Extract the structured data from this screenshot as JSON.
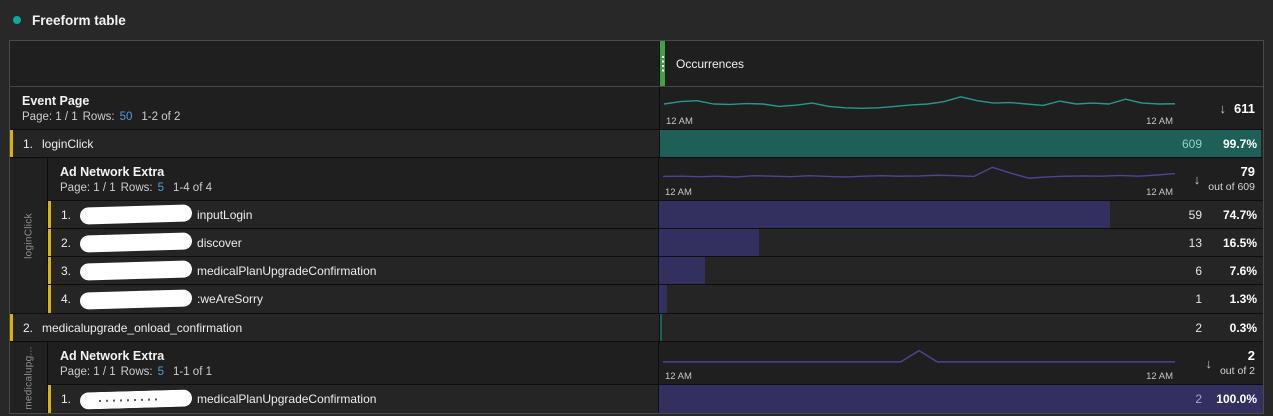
{
  "panel": {
    "title": "Freeform table",
    "accent_color": "#12a79c"
  },
  "table": {
    "metric_header": "Occurrences",
    "handle_color": "#3fa142",
    "dimension": {
      "name": "Event Page",
      "pagination": {
        "page": "Page: 1 / 1",
        "rows_label": "Rows:",
        "rows_value": "50",
        "range": "1-2 of 2"
      },
      "sort_arrow": "↓",
      "total": "611",
      "sparkline": {
        "color": "#27988c",
        "start_label": "12 AM",
        "end_label": "12 AM",
        "points": [
          0.5,
          0.4,
          0.36,
          0.5,
          0.52,
          0.48,
          0.5,
          0.6,
          0.55,
          0.46,
          0.6,
          0.66,
          0.68,
          0.66,
          0.6,
          0.54,
          0.5,
          0.4,
          0.2,
          0.36,
          0.46,
          0.44,
          0.5,
          0.56,
          0.38,
          0.5,
          0.46,
          0.5,
          0.3,
          0.46,
          0.5,
          0.49
        ]
      }
    },
    "rows": [
      {
        "index": "1.",
        "label": "loginClick",
        "value": "609",
        "value_color": "#8fd4cb",
        "percent": "99.7%",
        "bar": {
          "pct": 99.7,
          "color": "#1e5f58"
        },
        "breakdown": {
          "gutter_label": "loginClick",
          "dimension": {
            "name": "Ad Network Extra",
            "pagination": {
              "page": "Page: 1 / 1",
              "rows_label": "Rows:",
              "rows_value": "5",
              "range": "1-4 of 4"
            },
            "sort_arrow": "↓",
            "total": "79",
            "out_of": "out of 609",
            "sparkline": {
              "color": "#4c4596",
              "start_label": "12 AM",
              "end_label": "12 AM",
              "points": [
                0.56,
                0.55,
                0.57,
                0.55,
                0.58,
                0.53,
                0.55,
                0.57,
                0.53,
                0.56,
                0.58,
                0.55,
                0.53,
                0.55,
                0.54,
                0.51,
                0.53,
                0.56,
                0.18,
                0.42,
                0.63,
                0.58,
                0.55,
                0.54,
                0.55,
                0.52,
                0.55,
                0.5,
                0.44
              ]
            }
          },
          "rows": [
            {
              "index": "1.",
              "redacted": true,
              "label": "inputLogin",
              "value": "59",
              "percent": "74.7%",
              "bar": {
                "pct": 74.7,
                "color": "#333060"
              }
            },
            {
              "index": "2.",
              "redacted": true,
              "label": "discover",
              "value": "13",
              "percent": "16.5%",
              "bar": {
                "pct": 16.5,
                "color": "#333060"
              }
            },
            {
              "index": "3.",
              "redacted": true,
              "label": "medicalPlanUpgradeConfirmation",
              "value": "6",
              "percent": "7.6%",
              "bar": {
                "pct": 7.6,
                "color": "#333060"
              }
            },
            {
              "index": "4.",
              "redacted": true,
              "label": ":weAreSorry",
              "value": "1",
              "percent": "1.3%",
              "bar": {
                "pct": 1.3,
                "color": "#333060"
              }
            }
          ]
        }
      },
      {
        "index": "2.",
        "label": "medicalupgrade_onload_confirmation",
        "value": "2",
        "percent": "0.3%",
        "bar": {
          "pct": 0.3,
          "color": "#1e5f58"
        },
        "breakdown": {
          "gutter_label": "medicalupg...",
          "dimension": {
            "name": "Ad Network Extra",
            "pagination": {
              "page": "Page: 1 / 1",
              "rows_label": "Rows:",
              "rows_value": "5",
              "range": "1-1 of 1"
            },
            "sort_arrow": "↓",
            "total": "2",
            "out_of": "out of 2",
            "sparkline": {
              "color": "#4c4596",
              "start_label": "12 AM",
              "end_label": "12 AM",
              "points": [
                0.62,
                0.62,
                0.62,
                0.62,
                0.62,
                0.62,
                0.62,
                0.62,
                0.62,
                0.62,
                0.62,
                0.62,
                0.62,
                0.62,
                0.15,
                0.62,
                0.62,
                0.62,
                0.62,
                0.62,
                0.62,
                0.62,
                0.62,
                0.62,
                0.62,
                0.62,
                0.62,
                0.62,
                0.62
              ]
            }
          },
          "rows": [
            {
              "index": "1.",
              "redacted": true,
              "redact_style": "marks",
              "label": "medicalPlanUpgradeConfirmation",
              "value": "2",
              "value_color": "#a7a2d8",
              "percent": "100.0%",
              "bar": {
                "pct": 100,
                "color": "#333060"
              }
            }
          ]
        }
      }
    ]
  }
}
